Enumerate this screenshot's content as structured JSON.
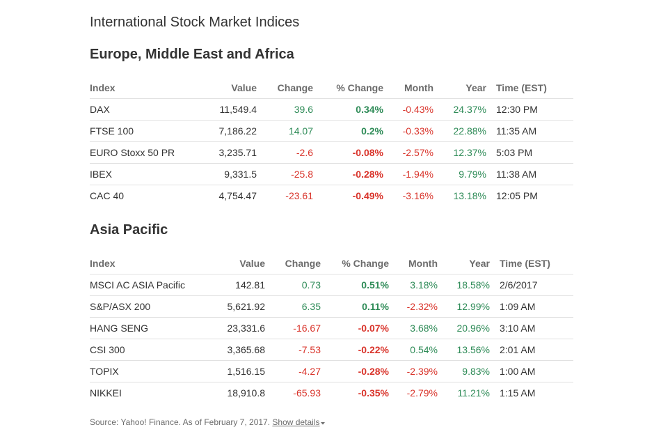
{
  "title": "International Stock Market Indices",
  "colors": {
    "positive": "#2e8b57",
    "negative": "#d9342b",
    "header_text": "#6b6b6b",
    "row_divider": "#e1e1e1"
  },
  "columns": [
    "Index",
    "Value",
    "Change",
    "% Change",
    "Month",
    "Year",
    "Time (EST)"
  ],
  "sections": [
    {
      "heading": "Europe, Middle East and Africa",
      "rows": [
        {
          "index": "DAX",
          "value": "11,549.4",
          "change": "39.6",
          "pct_change": "0.34%",
          "month": "-0.43%",
          "year": "24.37%",
          "time": "12:30 PM"
        },
        {
          "index": "FTSE 100",
          "value": "7,186.22",
          "change": "14.07",
          "pct_change": "0.2%",
          "month": "-0.33%",
          "year": "22.88%",
          "time": "11:35 AM"
        },
        {
          "index": "EURO Stoxx 50 PR",
          "value": "3,235.71",
          "change": "-2.6",
          "pct_change": "-0.08%",
          "month": "-2.57%",
          "year": "12.37%",
          "time": "5:03 PM"
        },
        {
          "index": "IBEX",
          "value": "9,331.5",
          "change": "-25.8",
          "pct_change": "-0.28%",
          "month": "-1.94%",
          "year": "9.79%",
          "time": "11:38 AM"
        },
        {
          "index": "CAC 40",
          "value": "4,754.47",
          "change": "-23.61",
          "pct_change": "-0.49%",
          "month": "-3.16%",
          "year": "13.18%",
          "time": "12:05 PM"
        }
      ]
    },
    {
      "heading": "Asia Pacific",
      "rows": [
        {
          "index": "MSCI AC ASIA Pacific",
          "value": "142.81",
          "change": "0.73",
          "pct_change": "0.51%",
          "month": "3.18%",
          "year": "18.58%",
          "time": "2/6/2017"
        },
        {
          "index": "S&P/ASX 200",
          "value": "5,621.92",
          "change": "6.35",
          "pct_change": "0.11%",
          "month": "-2.32%",
          "year": "12.99%",
          "time": "1:09 AM"
        },
        {
          "index": "HANG SENG",
          "value": "23,331.6",
          "change": "-16.67",
          "pct_change": "-0.07%",
          "month": "3.68%",
          "year": "20.96%",
          "time": "3:10 AM"
        },
        {
          "index": "CSI 300",
          "value": "3,365.68",
          "change": "-7.53",
          "pct_change": "-0.22%",
          "month": "0.54%",
          "year": "13.56%",
          "time": "2:01 AM"
        },
        {
          "index": "TOPIX",
          "value": "1,516.15",
          "change": "-4.27",
          "pct_change": "-0.28%",
          "month": "-2.39%",
          "year": "9.83%",
          "time": "1:00 AM"
        },
        {
          "index": "NIKKEI",
          "value": "18,910.8",
          "change": "-65.93",
          "pct_change": "-0.35%",
          "month": "-2.79%",
          "year": "11.21%",
          "time": "1:15 AM"
        }
      ]
    }
  ],
  "footer": {
    "source_text": "Source: Yahoo! Finance. As of February 7, 2017.",
    "link_text": "Show details",
    "link_icon": "chevron-down-icon"
  }
}
